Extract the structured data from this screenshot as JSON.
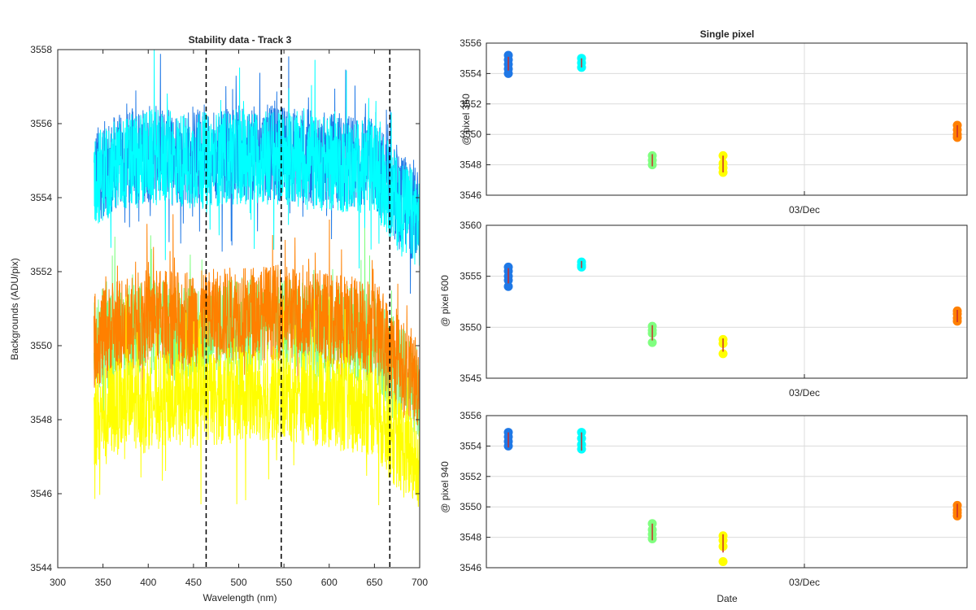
{
  "colors": {
    "blue": "#1f78e6",
    "cyan": "#00ffff",
    "green": "#80ff80",
    "yellow": "#ffff00",
    "orange": "#ff8000",
    "errorbar": "#cc2a2a",
    "vline": "#000000",
    "axis": "#262626",
    "grid": "#dcdcdc"
  },
  "chart_data": [
    {
      "type": "line",
      "title": "Stability data - Track 3",
      "xlabel": "Wavelength (nm)",
      "ylabel": "Backgrounds (ADU/pix)",
      "xlim": [
        300,
        700
      ],
      "ylim": [
        3544,
        3558
      ],
      "xticks": [
        "300",
        "350",
        "400",
        "450",
        "500",
        "550",
        "600",
        "650",
        "700"
      ],
      "yticks": [
        "3544",
        "3546",
        "3548",
        "3550",
        "3552",
        "3554",
        "3556",
        "3558"
      ],
      "x_range": [
        340,
        700
      ],
      "vlines": [
        464,
        547,
        667
      ],
      "grid": false,
      "series": [
        {
          "color": "blue",
          "values_x": [
            340,
            360,
            400,
            450,
            500,
            550,
            600,
            650,
            680,
            700
          ],
          "values_y": [
            3554.6,
            3554.9,
            3555.2,
            3555.1,
            3555.2,
            3555.2,
            3555.0,
            3554.9,
            3553.8,
            3553.5
          ]
        },
        {
          "color": "cyan",
          "values_x": [
            340,
            360,
            400,
            450,
            500,
            550,
            600,
            650,
            680,
            700
          ],
          "values_y": [
            3554.5,
            3554.8,
            3555.1,
            3555.0,
            3555.1,
            3555.1,
            3554.9,
            3554.8,
            3553.7,
            3553.4
          ]
        },
        {
          "color": "green",
          "values_x": [
            340,
            360,
            400,
            450,
            500,
            550,
            600,
            650,
            680,
            700
          ],
          "values_y": [
            3549.9,
            3550.2,
            3550.5,
            3550.4,
            3550.6,
            3550.6,
            3550.4,
            3550.2,
            3549.2,
            3548.8
          ]
        },
        {
          "color": "orange",
          "values_x": [
            340,
            360,
            400,
            450,
            500,
            550,
            600,
            650,
            680,
            700
          ],
          "values_y": [
            3550.1,
            3550.4,
            3550.8,
            3550.7,
            3550.9,
            3550.9,
            3550.7,
            3550.5,
            3549.4,
            3549.0
          ]
        },
        {
          "color": "yellow",
          "values_x": [
            340,
            360,
            400,
            450,
            500,
            550,
            600,
            650,
            680,
            700
          ],
          "values_y": [
            3548.0,
            3548.3,
            3548.6,
            3548.5,
            3548.7,
            3548.7,
            3548.5,
            3548.3,
            3547.2,
            3546.8
          ]
        }
      ]
    },
    {
      "type": "scatter",
      "title": "Single pixel",
      "ylabel": "@ pixel 360",
      "xlabel": "",
      "xtick_label": "03/Dec",
      "ylim": [
        3546,
        3556
      ],
      "yticks": [
        "3546",
        "3548",
        "3550",
        "3552",
        "3554",
        "3556"
      ],
      "grid": true,
      "groups": [
        {
          "color": "blue",
          "points": [
            3555.2,
            3554.9,
            3554.6,
            3554.3,
            3554.0
          ],
          "err": [
            3554.2,
            3555.1
          ]
        },
        {
          "color": "cyan",
          "points": [
            3555.0,
            3554.7,
            3554.4
          ],
          "err": [
            3554.4,
            3555.0
          ]
        },
        {
          "color": "green",
          "points": [
            3548.6,
            3548.3,
            3548.0
          ],
          "err": [
            3547.9,
            3548.7
          ]
        },
        {
          "color": "yellow",
          "points": [
            3548.6,
            3548.1,
            3547.8,
            3547.5
          ],
          "err": [
            3547.5,
            3548.6
          ]
        },
        {
          "color": "orange",
          "points": [
            3550.6,
            3550.3,
            3550.0,
            3549.8
          ],
          "err": [
            3549.8,
            3550.6
          ]
        }
      ]
    },
    {
      "type": "scatter",
      "title": "",
      "ylabel": "@ pixel 600",
      "xlabel": "",
      "xtick_label": "03/Dec",
      "ylim": [
        3545,
        3560
      ],
      "yticks": [
        "3545",
        "3550",
        "3555",
        "3560"
      ],
      "grid": true,
      "groups": [
        {
          "color": "blue",
          "points": [
            3555.9,
            3555.5,
            3555.0,
            3554.6,
            3554.0
          ],
          "err": [
            3554.3,
            3555.8
          ]
        },
        {
          "color": "cyan",
          "points": [
            3556.4,
            3556.1,
            3555.9
          ],
          "err": [
            3555.8,
            3556.5
          ]
        },
        {
          "color": "green",
          "points": [
            3550.1,
            3549.7,
            3549.4,
            3548.5
          ],
          "err": [
            3548.7,
            3550.2
          ]
        },
        {
          "color": "yellow",
          "points": [
            3548.8,
            3548.4,
            3547.4
          ],
          "err": [
            3547.6,
            3548.9
          ]
        },
        {
          "color": "orange",
          "points": [
            3551.6,
            3551.3,
            3550.9,
            3550.6
          ],
          "err": [
            3550.5,
            3551.7
          ]
        }
      ]
    },
    {
      "type": "scatter",
      "title": "",
      "ylabel": "@ pixel 940",
      "xlabel": "Date",
      "xtick_label": "03/Dec",
      "ylim": [
        3546,
        3556
      ],
      "yticks": [
        "3546",
        "3548",
        "3550",
        "3552",
        "3554",
        "3556"
      ],
      "grid": true,
      "groups": [
        {
          "color": "blue",
          "points": [
            3554.9,
            3554.6,
            3554.3,
            3554.0
          ],
          "err": [
            3553.9,
            3554.9
          ]
        },
        {
          "color": "cyan",
          "points": [
            3554.9,
            3554.5,
            3554.1,
            3553.8
          ],
          "err": [
            3553.7,
            3554.9
          ]
        },
        {
          "color": "green",
          "points": [
            3548.9,
            3548.5,
            3548.2,
            3547.9
          ],
          "err": [
            3547.8,
            3548.9
          ]
        },
        {
          "color": "yellow",
          "points": [
            3548.1,
            3547.8,
            3547.4,
            3546.4
          ],
          "err": [
            3547.0,
            3548.2
          ]
        },
        {
          "color": "orange",
          "points": [
            3550.1,
            3549.8,
            3549.6,
            3549.4
          ],
          "err": [
            3549.3,
            3550.2
          ]
        }
      ]
    }
  ]
}
